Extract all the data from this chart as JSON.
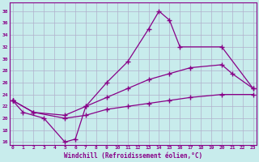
{
  "xlabel": "Windchill (Refroidissement éolien,°C)",
  "bg_color": "#c8ecec",
  "grid_color": "#b0b0cc",
  "line_color": "#880088",
  "yticks": [
    16,
    18,
    20,
    22,
    24,
    26,
    28,
    30,
    32,
    34,
    36,
    38
  ],
  "xticks": [
    0,
    1,
    2,
    3,
    4,
    5,
    6,
    7,
    8,
    9,
    10,
    11,
    12,
    13,
    14,
    15,
    16,
    17,
    18,
    19,
    20,
    21,
    22,
    23
  ],
  "line1_x": [
    0,
    1,
    3,
    5,
    6,
    7,
    9,
    11,
    13,
    14,
    15,
    16,
    20,
    23
  ],
  "line1_y": [
    23,
    21,
    20,
    16,
    16.5,
    22,
    26,
    29.5,
    35,
    38,
    36.5,
    32,
    32,
    25
  ],
  "line2_x": [
    0,
    2,
    5,
    7,
    9,
    11,
    13,
    15,
    17,
    20,
    21,
    23
  ],
  "line2_y": [
    23,
    21,
    20.5,
    22,
    23.5,
    25,
    26.5,
    27.5,
    28.5,
    29,
    27.5,
    25
  ],
  "line3_x": [
    0,
    2,
    5,
    7,
    9,
    11,
    13,
    15,
    17,
    20,
    23
  ],
  "line3_y": [
    23,
    21,
    20,
    20.5,
    21.5,
    22,
    22.5,
    23,
    23.5,
    24,
    24
  ]
}
